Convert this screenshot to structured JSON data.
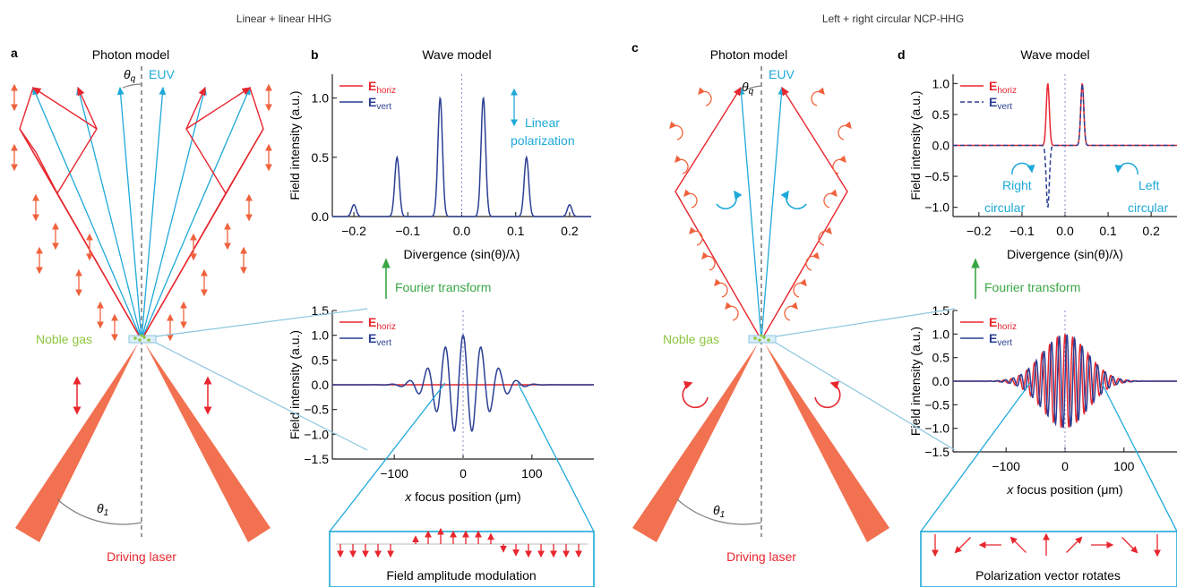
{
  "header": {
    "left_title": "Linear + linear HHG",
    "right_title": "Left + right circular NCP-HHG"
  },
  "panels": {
    "a": {
      "letter": "a",
      "title": "Photon model",
      "euv": "EUV",
      "theta_q": "θ",
      "theta_q_sub": "q",
      "theta_1": "θ",
      "theta_1_sub": "1",
      "gas": "Noble gas",
      "laser": "Driving laser"
    },
    "b": {
      "letter": "b",
      "title": "Wave model",
      "annotation1": "Linear",
      "annotation2": "polarization",
      "fourier": "Fourier transform",
      "modulation": "Field amplitude modulation"
    },
    "c": {
      "letter": "c",
      "title": "Photon model",
      "euv": "EUV",
      "theta_q": "θ",
      "theta_q_sub": "q",
      "theta_1": "θ",
      "theta_1_sub": "1",
      "gas": "Noble gas",
      "laser": "Driving laser"
    },
    "d": {
      "letter": "d",
      "title": "Wave model",
      "right1": "Right",
      "right2": "circular",
      "left1": "Left",
      "left2": "circular",
      "fourier": "Fourier transform",
      "rotates": "Polarization vector rotates"
    }
  },
  "legend": {
    "E": "E",
    "horiz": "horiz",
    "vert": "vert"
  },
  "colors": {
    "red": "#e8262e",
    "blue": "#2b3f94",
    "cyan": "#1ea9d9",
    "salmon": "#f0623d",
    "green": "#3aa745",
    "gas_green": "#8cc63f",
    "gray": "#808080"
  },
  "chart_data": [
    {
      "id": "b-top",
      "type": "line",
      "xlabel": "Divergence (sin(θ)/λ)",
      "ylabel": "Field intensity (a.u.)",
      "xlim": [
        -0.24,
        0.24
      ],
      "ylim": [
        0,
        1.2
      ],
      "xticks": [
        "−0.2",
        "−0.1",
        "0.0",
        "0.1",
        "0.2"
      ],
      "yticks": [
        "0.0",
        "0.5",
        "1.0"
      ],
      "series": [
        {
          "name": "E horiz",
          "peaks": [
            [
              -0.2,
              0.1
            ],
            [
              -0.12,
              0.5
            ],
            [
              -0.04,
              1.0
            ],
            [
              0.04,
              1.0
            ],
            [
              0.12,
              0.5
            ],
            [
              0.2,
              0.1
            ]
          ]
        },
        {
          "name": "E vert",
          "peaks": [
            [
              -0.2,
              0.1
            ],
            [
              -0.12,
              0.5
            ],
            [
              -0.04,
              1.0
            ],
            [
              0.04,
              1.0
            ],
            [
              0.12,
              0.5
            ],
            [
              0.2,
              0.1
            ]
          ]
        }
      ]
    },
    {
      "id": "b-bottom",
      "type": "line",
      "xlabel": "x focus position (μm)",
      "ylabel": "Field intensity (a.u.)",
      "xlim": [
        -190,
        190
      ],
      "ylim": [
        -1.5,
        1.5
      ],
      "xticks": [
        "−100",
        "0",
        "100"
      ],
      "yticks": [
        "−1.5",
        "−1.0",
        "−0.5",
        "0.0",
        "0.5",
        "1.0",
        "1.5"
      ],
      "series": [
        {
          "name": "E horiz",
          "values": "flat at 0.0"
        },
        {
          "name": "E vert",
          "envelope_sigma_um": 35,
          "period_um": 26,
          "peak": 1.0
        }
      ]
    },
    {
      "id": "d-top",
      "type": "line",
      "xlabel": "Divergence (sin(θ)/λ)",
      "ylabel": "Field intensity (a.u.)",
      "xlim": [
        -0.26,
        0.26
      ],
      "ylim": [
        -1.15,
        1.15
      ],
      "xticks": [
        "−0.2",
        "−0.1",
        "0.0",
        "0.1",
        "0.2"
      ],
      "yticks": [
        "−1.0",
        "−0.5",
        "0.0",
        "0.5",
        "1.0"
      ],
      "series": [
        {
          "name": "E horiz",
          "peaks": [
            [
              -0.04,
              1.0
            ],
            [
              0.04,
              1.0
            ]
          ]
        },
        {
          "name": "E vert",
          "peaks": [
            [
              -0.04,
              -1.0
            ],
            [
              0.04,
              1.0
            ]
          ]
        }
      ]
    },
    {
      "id": "d-bottom",
      "type": "line",
      "xlabel": "x focus position (μm)",
      "ylabel": "Field intensity (a.u.)",
      "xlim": [
        -190,
        190
      ],
      "ylim": [
        -1.5,
        1.5
      ],
      "xticks": [
        "−100",
        "0",
        "100"
      ],
      "yticks": [
        "−1.5",
        "−1.0",
        "−0.5",
        "0.0",
        "0.5",
        "1.0",
        "1.5"
      ],
      "series": [
        {
          "name": "E horiz",
          "envelope_sigma_um": 38,
          "period_um": 13,
          "peak": 1.0
        },
        {
          "name": "E vert",
          "envelope_sigma_um": 38,
          "period_um": 13,
          "peak": 1.0,
          "phase_shift": "quarter"
        }
      ]
    }
  ]
}
